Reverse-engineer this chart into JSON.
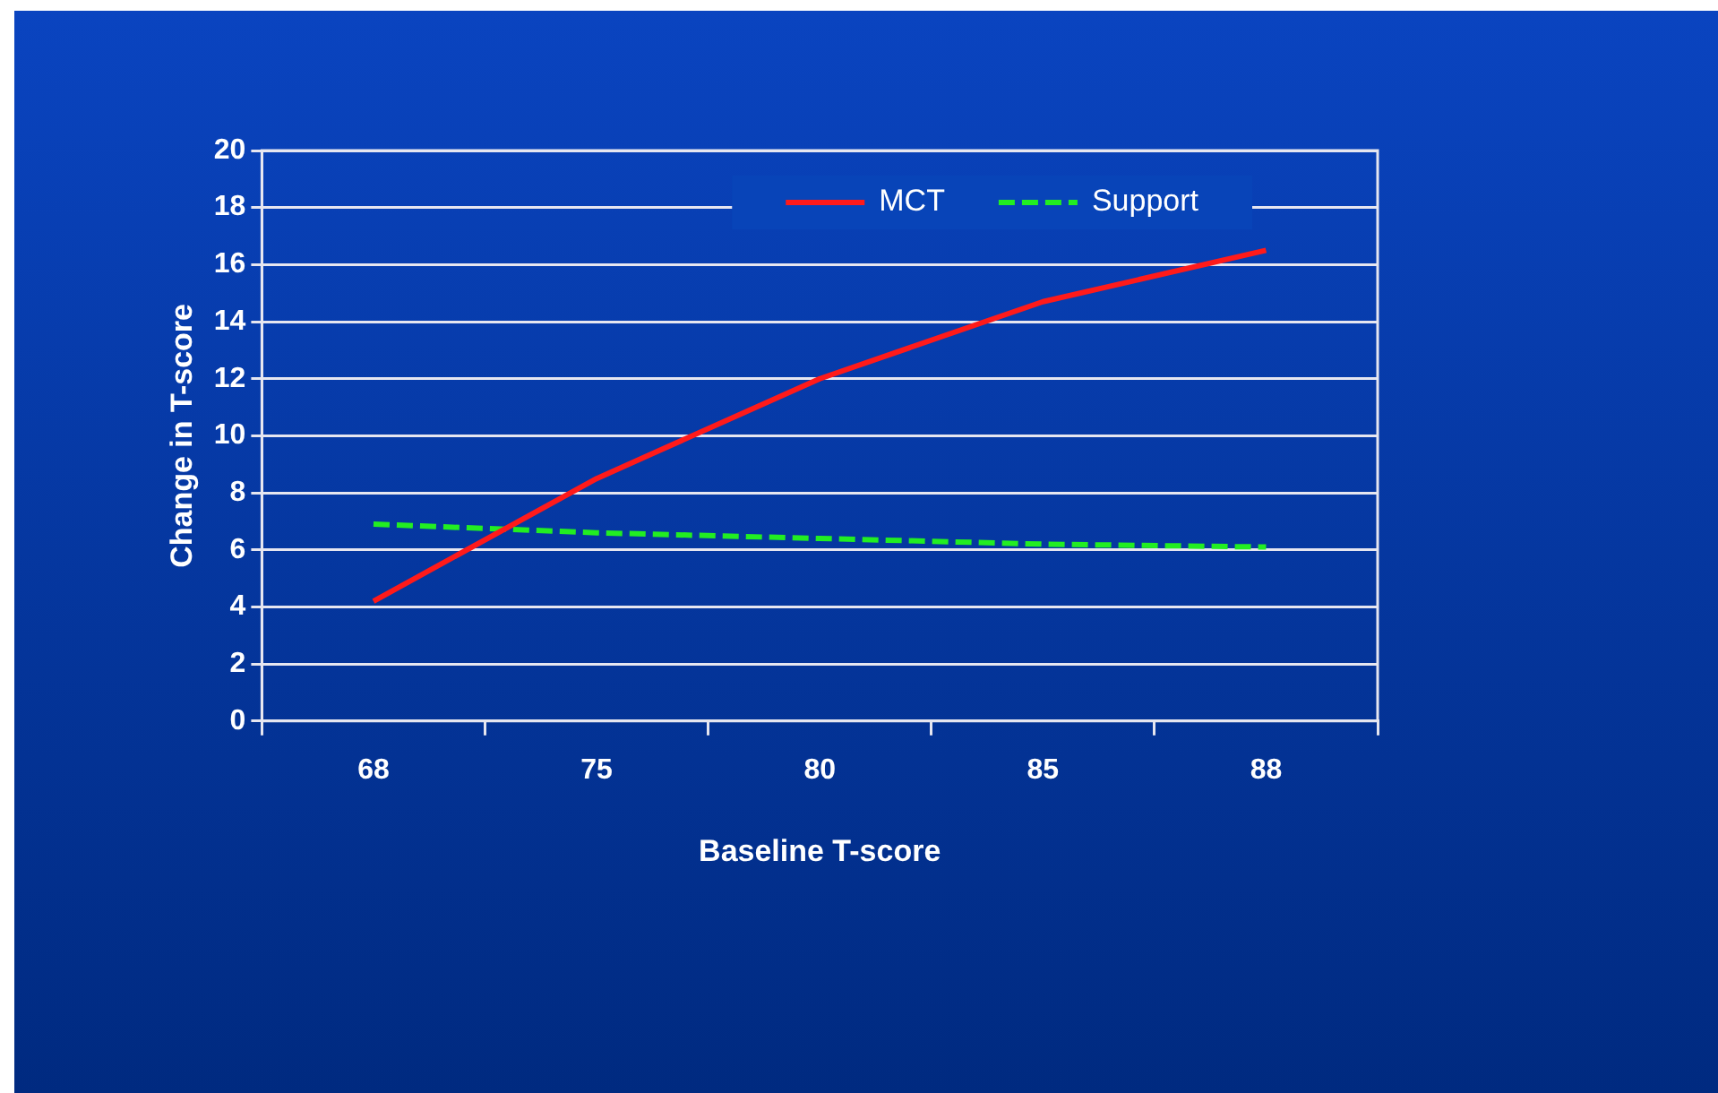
{
  "chart_data": {
    "type": "line",
    "xlabel": "Baseline T-score",
    "ylabel": "Change in T-score",
    "categories": [
      "68",
      "75",
      "80",
      "85",
      "88"
    ],
    "series": [
      {
        "name": "MCT",
        "color": "#ff1a1a",
        "values": [
          4.2,
          8.5,
          12.0,
          14.7,
          16.5
        ],
        "line_style": "solid"
      },
      {
        "name": "Support",
        "color": "#22ee22",
        "values": [
          6.9,
          6.6,
          6.4,
          6.2,
          6.1
        ],
        "line_style": "dashed"
      }
    ],
    "ylim": [
      0,
      20
    ],
    "yticks": [
      0,
      2,
      4,
      6,
      8,
      10,
      12,
      14,
      16,
      18,
      20
    ],
    "grid": "y",
    "legend": "top right",
    "marker": "none"
  }
}
